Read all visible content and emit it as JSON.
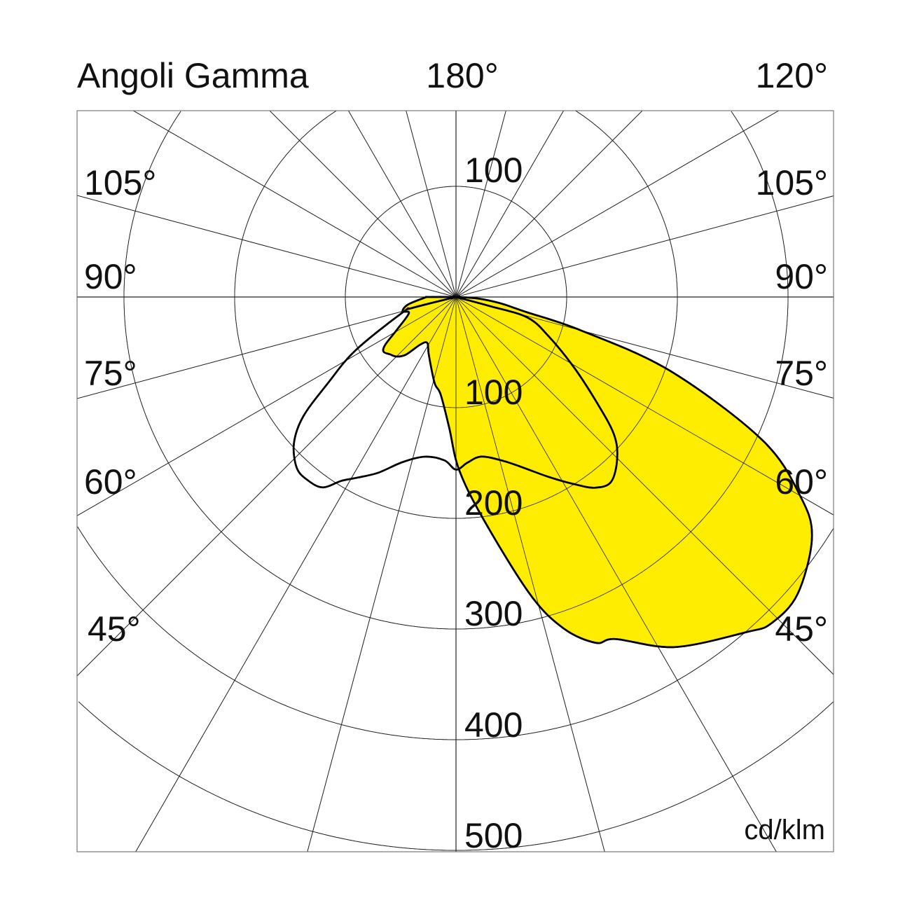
{
  "chart_data": {
    "type": "polar",
    "title": "Angoli Gamma",
    "unit_label": "cd/klm",
    "top_angle_labels": {
      "center": "180°",
      "right": "120°"
    },
    "left_angle_labels": [
      "105°",
      "90°",
      "75°",
      "60°",
      "45°"
    ],
    "right_angle_labels": [
      "105°",
      "90°",
      "75°",
      "60°",
      "45°"
    ],
    "radial_tick_labels": {
      "upper": "100",
      "lower": [
        "100",
        "200",
        "300",
        "400",
        "500"
      ]
    },
    "radial_range": [
      0,
      500
    ],
    "radial_ticks": [
      100,
      200,
      300,
      400,
      500
    ],
    "angular_grid_step_deg": 15,
    "grid": true,
    "series": [
      {
        "fill": "#FFED00",
        "stroke": "#000000",
        "points": [
          [
            -90,
            25
          ],
          [
            -89,
            28
          ],
          [
            -81,
            44
          ],
          [
            -75,
            50
          ],
          [
            -71,
            45
          ],
          [
            -61,
            61
          ],
          [
            -56,
            77
          ],
          [
            -53,
            82
          ],
          [
            -49,
            79
          ],
          [
            -45,
            76
          ],
          [
            -41,
            69
          ],
          [
            -37,
            54
          ],
          [
            -32,
            49
          ],
          [
            -25,
            58
          ],
          [
            -14,
            80
          ],
          [
            -9,
            89
          ],
          [
            -3,
            118
          ],
          [
            1,
            156
          ],
          [
            7,
            202
          ],
          [
            14,
            277
          ],
          [
            18,
            315
          ],
          [
            22,
            337
          ],
          [
            25,
            341
          ],
          [
            32,
            373
          ],
          [
            41,
            401
          ],
          [
            44,
            410
          ],
          [
            49,
            409
          ],
          [
            56,
            388
          ],
          [
            60,
            359
          ],
          [
            65,
            305
          ],
          [
            71,
            204
          ],
          [
            75,
            117
          ],
          [
            78,
            64
          ],
          [
            82,
            40
          ],
          [
            86,
            20
          ],
          [
            90,
            0
          ]
        ]
      },
      {
        "fill": "none",
        "stroke": "#000000",
        "points": [
          [
            -80,
            0
          ],
          [
            -76,
            40
          ],
          [
            -74,
            50
          ],
          [
            -62,
            103
          ],
          [
            -56,
            140
          ],
          [
            -52,
            175
          ],
          [
            -48,
            197
          ],
          [
            -43,
            211
          ],
          [
            -39,
            213
          ],
          [
            -35,
            210
          ],
          [
            -32,
            196
          ],
          [
            -29,
            187
          ],
          [
            -24,
            174
          ],
          [
            -18,
            157
          ],
          [
            -11,
            147
          ],
          [
            -4,
            148
          ],
          [
            0,
            156
          ],
          [
            4,
            150
          ],
          [
            9,
            146
          ],
          [
            16,
            154
          ],
          [
            22,
            167
          ],
          [
            27,
            182
          ],
          [
            32,
            199
          ],
          [
            36,
            213
          ],
          [
            40,
            218
          ],
          [
            45,
            206
          ],
          [
            49,
            189
          ],
          [
            53,
            160
          ],
          [
            59,
            125
          ],
          [
            67,
            91
          ],
          [
            74,
            67
          ],
          [
            75,
            32
          ],
          [
            80,
            0
          ]
        ]
      }
    ]
  }
}
